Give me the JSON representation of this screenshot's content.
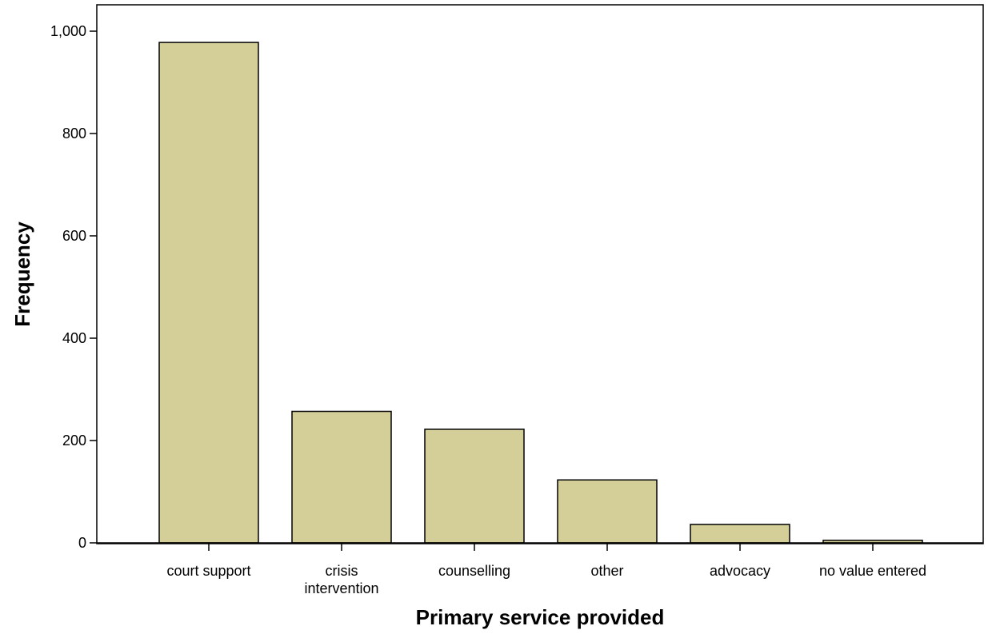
{
  "chart_data": {
    "type": "bar",
    "title": "",
    "xlabel": "Primary service provided",
    "ylabel": "Frequency",
    "categories": [
      [
        "court support"
      ],
      [
        "crisis",
        "intervention"
      ],
      [
        "counselling"
      ],
      [
        "other"
      ],
      [
        "advocacy"
      ],
      [
        "no value entered"
      ]
    ],
    "values": [
      978,
      257,
      222,
      123,
      36,
      5
    ],
    "ylim": [
      0,
      1000
    ],
    "yticks": [
      0,
      200,
      400,
      600,
      800,
      1000
    ],
    "ytick_labels": [
      "0",
      "200",
      "400",
      "600",
      "800",
      "1,000"
    ],
    "grid": false,
    "colors": {
      "bar_fill": "#d4cf99",
      "bar_stroke": "#000000",
      "background": "#ffffff"
    }
  }
}
